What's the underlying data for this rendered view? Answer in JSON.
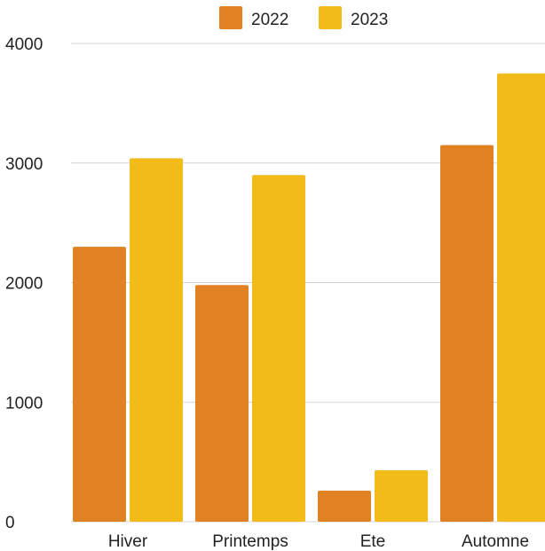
{
  "chart_data": {
    "type": "bar",
    "categories": [
      "Hiver",
      "Printemps",
      "Ete",
      "Automne"
    ],
    "series": [
      {
        "name": "2022",
        "color": "#E08224",
        "values": [
          2300,
          1980,
          260,
          3150
        ]
      },
      {
        "name": "2023",
        "color": "#F2BB1A",
        "values": [
          3040,
          2900,
          430,
          3750
        ]
      }
    ],
    "yticks": [
      "0",
      "1000",
      "2000",
      "3000",
      "4000"
    ],
    "ylim": [
      0,
      4000
    ],
    "grid": true,
    "legend_position": "top-center",
    "title": "",
    "xlabel": "",
    "ylabel": ""
  }
}
